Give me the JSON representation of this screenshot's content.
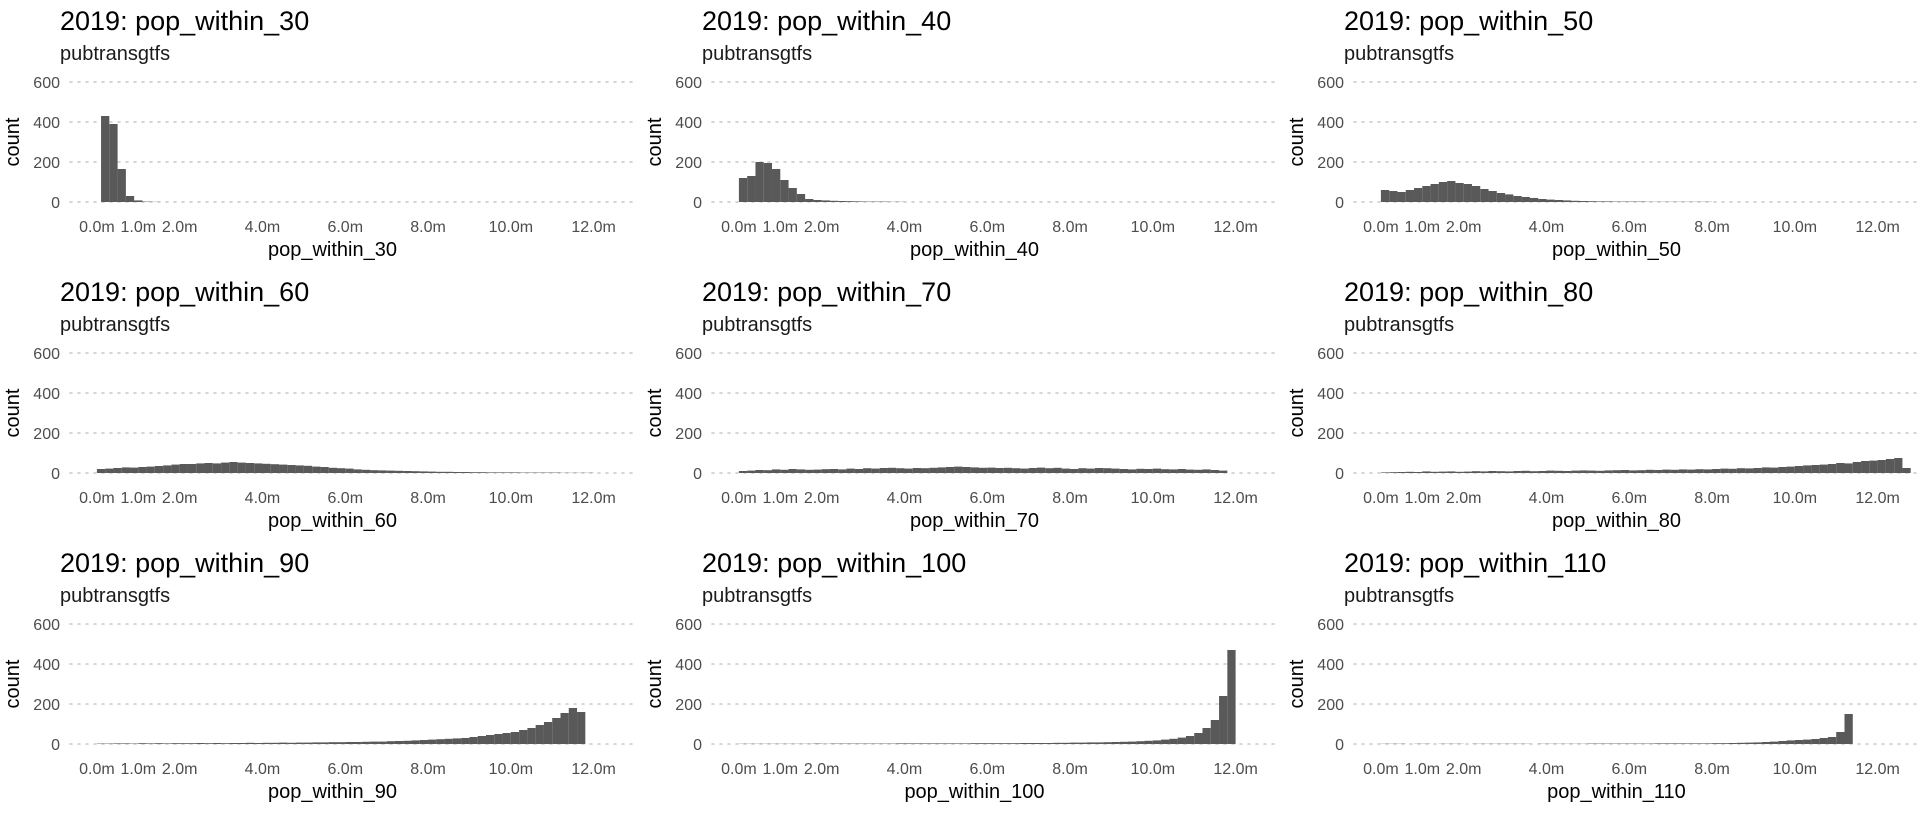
{
  "chart_data": [
    {
      "type": "bar",
      "title": "2019: pop_within_30",
      "subtitle": "pubtransgtfs",
      "xlabel": "pop_within_30",
      "ylabel": "count",
      "xlim": [
        -0.65,
        13.0
      ],
      "ylim": [
        0,
        600
      ],
      "yticks": [
        0,
        200,
        400,
        600
      ],
      "xticks": [
        0,
        1,
        2,
        4,
        6,
        8,
        10,
        12
      ],
      "xtick_labels": [
        "0.0m",
        "1.0m",
        "2.0m",
        "4.0m",
        "6.0m",
        "8.0m",
        "10.0m",
        "12.0m"
      ],
      "bin_width": 0.2,
      "bin_start": 0.1,
      "values": [
        430,
        390,
        165,
        30,
        8,
        2,
        1
      ]
    },
    {
      "type": "bar",
      "title": "2019: pop_within_40",
      "subtitle": "pubtransgtfs",
      "xlabel": "pop_within_40",
      "ylabel": "count",
      "xlim": [
        -0.65,
        13.0
      ],
      "ylim": [
        0,
        600
      ],
      "yticks": [
        0,
        200,
        400,
        600
      ],
      "xticks": [
        0,
        1,
        2,
        4,
        6,
        8,
        10,
        12
      ],
      "xtick_labels": [
        "0.0m",
        "1.0m",
        "2.0m",
        "4.0m",
        "6.0m",
        "8.0m",
        "10.0m",
        "12.0m"
      ],
      "bin_width": 0.2,
      "bin_start": 0.0,
      "values": [
        120,
        130,
        200,
        195,
        165,
        110,
        70,
        40,
        15,
        10,
        8,
        6,
        5,
        4,
        3,
        2,
        2,
        2,
        1,
        1
      ]
    },
    {
      "type": "bar",
      "title": "2019: pop_within_50",
      "subtitle": "pubtransgtfs",
      "xlabel": "pop_within_50",
      "ylabel": "count",
      "xlim": [
        -0.65,
        13.0
      ],
      "ylim": [
        0,
        600
      ],
      "yticks": [
        0,
        200,
        400,
        600
      ],
      "xticks": [
        0,
        1,
        2,
        4,
        6,
        8,
        10,
        12
      ],
      "xtick_labels": [
        "0.0m",
        "1.0m",
        "2.0m",
        "4.0m",
        "6.0m",
        "8.0m",
        "10.0m",
        "12.0m"
      ],
      "bin_width": 0.2,
      "bin_start": 0.0,
      "values": [
        60,
        55,
        50,
        60,
        70,
        80,
        90,
        100,
        105,
        95,
        90,
        80,
        65,
        55,
        45,
        38,
        30,
        25,
        20,
        15,
        12,
        10,
        8,
        6,
        5,
        4,
        3,
        3,
        2,
        2,
        2,
        2,
        1,
        1,
        1,
        1,
        1,
        1,
        1,
        1
      ]
    },
    {
      "type": "bar",
      "title": "2019: pop_within_60",
      "subtitle": "pubtransgtfs",
      "xlabel": "pop_within_60",
      "ylabel": "count",
      "xlim": [
        -0.65,
        13.0
      ],
      "ylim": [
        0,
        600
      ],
      "yticks": [
        0,
        200,
        400,
        600
      ],
      "xticks": [
        0,
        1,
        2,
        4,
        6,
        8,
        10,
        12
      ],
      "xtick_labels": [
        "0.0m",
        "1.0m",
        "2.0m",
        "4.0m",
        "6.0m",
        "8.0m",
        "10.0m",
        "12.0m"
      ],
      "bin_width": 0.2,
      "bin_start": 0.0,
      "values": [
        20,
        22,
        25,
        28,
        27,
        30,
        32,
        35,
        38,
        42,
        45,
        45,
        48,
        50,
        48,
        52,
        55,
        52,
        50,
        48,
        46,
        44,
        42,
        40,
        38,
        36,
        32,
        30,
        26,
        24,
        22,
        18,
        16,
        14,
        13,
        12,
        11,
        10,
        9,
        8,
        7,
        6,
        6,
        5,
        5,
        4,
        4,
        3,
        3,
        3,
        3,
        2,
        2,
        2,
        2,
        2,
        1,
        1,
        1,
        1
      ]
    },
    {
      "type": "bar",
      "title": "2019: pop_within_70",
      "subtitle": "pubtransgtfs",
      "xlabel": "pop_within_70",
      "ylabel": "count",
      "xlim": [
        -0.65,
        13.0
      ],
      "ylim": [
        0,
        600
      ],
      "yticks": [
        0,
        200,
        400,
        600
      ],
      "xticks": [
        0,
        1,
        2,
        4,
        6,
        8,
        10,
        12
      ],
      "xtick_labels": [
        "0.0m",
        "1.0m",
        "2.0m",
        "4.0m",
        "6.0m",
        "8.0m",
        "10.0m",
        "12.0m"
      ],
      "bin_width": 0.2,
      "bin_start": 0.0,
      "values": [
        10,
        12,
        15,
        14,
        18,
        16,
        20,
        18,
        16,
        17,
        19,
        20,
        18,
        22,
        20,
        24,
        22,
        25,
        26,
        24,
        22,
        25,
        24,
        26,
        28,
        30,
        32,
        30,
        28,
        26,
        27,
        25,
        26,
        24,
        22,
        25,
        27,
        24,
        26,
        22,
        20,
        24,
        22,
        25,
        24,
        22,
        20,
        18,
        21,
        20,
        22,
        19,
        18,
        20,
        17,
        16,
        18,
        15,
        12
      ]
    },
    {
      "type": "bar",
      "title": "2019: pop_within_80",
      "subtitle": "pubtransgtfs",
      "xlabel": "pop_within_80",
      "ylabel": "count",
      "xlim": [
        -0.65,
        13.0
      ],
      "ylim": [
        0,
        600
      ],
      "yticks": [
        0,
        200,
        400,
        600
      ],
      "xticks": [
        0,
        1,
        2,
        4,
        6,
        8,
        10,
        12
      ],
      "xtick_labels": [
        "0.0m",
        "1.0m",
        "2.0m",
        "4.0m",
        "6.0m",
        "8.0m",
        "10.0m",
        "12.0m"
      ],
      "bin_width": 0.2,
      "bin_start": 0.0,
      "values": [
        3,
        4,
        5,
        6,
        5,
        8,
        6,
        7,
        8,
        6,
        7,
        9,
        8,
        10,
        9,
        8,
        10,
        11,
        9,
        10,
        12,
        11,
        10,
        12,
        13,
        12,
        11,
        13,
        14,
        15,
        13,
        14,
        16,
        15,
        17,
        16,
        18,
        17,
        19,
        18,
        20,
        22,
        21,
        24,
        23,
        25,
        28,
        27,
        30,
        32,
        35,
        38,
        40,
        42,
        45,
        50,
        48,
        55,
        60,
        62,
        65,
        70,
        75,
        25
      ]
    },
    {
      "type": "bar",
      "title": "2019: pop_within_90",
      "subtitle": "pubtransgtfs",
      "xlabel": "pop_within_90",
      "ylabel": "count",
      "xlim": [
        -0.65,
        13.0
      ],
      "ylim": [
        0,
        600
      ],
      "yticks": [
        0,
        200,
        400,
        600
      ],
      "xticks": [
        0,
        1,
        2,
        4,
        6,
        8,
        10,
        12
      ],
      "xtick_labels": [
        "0.0m",
        "1.0m",
        "2.0m",
        "4.0m",
        "6.0m",
        "8.0m",
        "10.0m",
        "12.0m"
      ],
      "bin_width": 0.2,
      "bin_start": 0.0,
      "values": [
        2,
        2,
        3,
        3,
        2,
        4,
        3,
        4,
        3,
        4,
        4,
        4,
        5,
        4,
        5,
        4,
        5,
        5,
        6,
        5,
        6,
        6,
        7,
        6,
        7,
        7,
        8,
        8,
        9,
        9,
        10,
        10,
        11,
        12,
        12,
        14,
        15,
        16,
        18,
        20,
        22,
        24,
        26,
        28,
        30,
        35,
        40,
        45,
        50,
        55,
        60,
        70,
        80,
        95,
        110,
        130,
        155,
        180,
        160
      ]
    },
    {
      "type": "bar",
      "title": "2019: pop_within_100",
      "subtitle": "pubtransgtfs",
      "xlabel": "pop_within_100",
      "ylabel": "count",
      "xlim": [
        -0.65,
        13.0
      ],
      "ylim": [
        0,
        600
      ],
      "yticks": [
        0,
        200,
        400,
        600
      ],
      "xticks": [
        0,
        1,
        2,
        4,
        6,
        8,
        10,
        12
      ],
      "xtick_labels": [
        "0.0m",
        "1.0m",
        "2.0m",
        "4.0m",
        "6.0m",
        "8.0m",
        "10.0m",
        "12.0m"
      ],
      "bin_width": 0.2,
      "bin_start": 0.0,
      "values": [
        1,
        1,
        1,
        1,
        1,
        1,
        1,
        1,
        1,
        2,
        1,
        2,
        2,
        2,
        2,
        2,
        2,
        2,
        2,
        3,
        3,
        3,
        3,
        3,
        3,
        3,
        3,
        3,
        4,
        4,
        4,
        4,
        4,
        4,
        5,
        5,
        5,
        5,
        6,
        6,
        7,
        7,
        8,
        8,
        9,
        10,
        11,
        12,
        14,
        16,
        18,
        22,
        26,
        32,
        40,
        55,
        80,
        120,
        240,
        470
      ]
    },
    {
      "type": "bar",
      "title": "2019: pop_within_110",
      "subtitle": "pubtransgtfs",
      "xlabel": "pop_within_110",
      "ylabel": "count",
      "xlim": [
        -0.65,
        13.0
      ],
      "ylim": [
        0,
        600
      ],
      "yticks": [
        0,
        200,
        400,
        600
      ],
      "xticks": [
        0,
        1,
        2,
        4,
        6,
        8,
        10,
        12
      ],
      "xtick_labels": [
        "0.0m",
        "1.0m",
        "2.0m",
        "4.0m",
        "6.0m",
        "8.0m",
        "10.0m",
        "12.0m"
      ],
      "bin_width": 0.2,
      "bin_start": 0.0,
      "values": [
        1,
        1,
        1,
        0,
        1,
        1,
        0,
        1,
        1,
        1,
        0,
        1,
        1,
        1,
        1,
        1,
        1,
        1,
        0,
        1,
        1,
        1,
        1,
        1,
        1,
        2,
        2,
        2,
        2,
        2,
        2,
        2,
        2,
        3,
        3,
        3,
        3,
        3,
        3,
        3,
        4,
        4,
        5,
        6,
        7,
        8,
        10,
        12,
        15,
        18,
        20,
        22,
        25,
        30,
        35,
        60,
        150
      ]
    }
  ],
  "style": {
    "bar_color": "#595959",
    "grid_color": "#c9c9c9",
    "background": "#ffffff"
  }
}
